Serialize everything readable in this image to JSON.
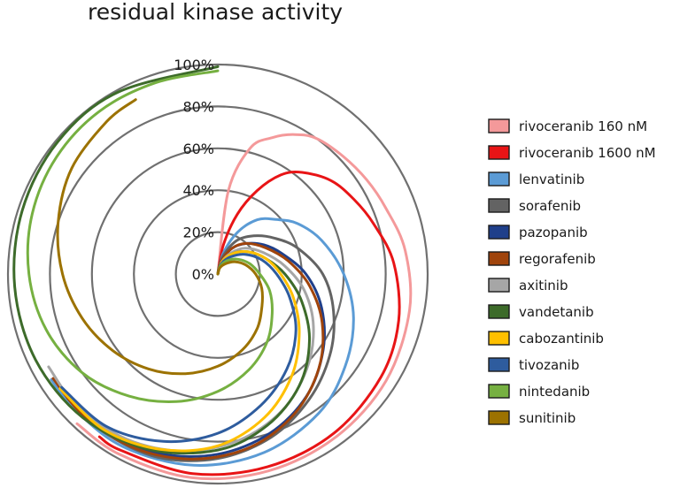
{
  "chart_data": {
    "type": "polar-line",
    "title": "residual kinase activity",
    "radial_ticks": [
      "0%",
      "20%",
      "40%",
      "60%",
      "80%",
      "100%"
    ],
    "radial_values": [
      0,
      20,
      40,
      60,
      80,
      100
    ],
    "rlim": [
      0,
      100
    ],
    "grid": true,
    "legend_position": "right",
    "theta_note": "angle = cumulative share of kinases (0–1), clockwise from 12 o'clock",
    "series": [
      {
        "name": "rivoceranib 160 nM",
        "color": "#f4999a",
        "points": [
          [
            0,
            0
          ],
          [
            0.02,
            40
          ],
          [
            0.04,
            62
          ],
          [
            0.06,
            70
          ],
          [
            0.08,
            76
          ],
          [
            0.1,
            80
          ],
          [
            0.13,
            82
          ],
          [
            0.16,
            84
          ],
          [
            0.19,
            86
          ],
          [
            0.23,
            90
          ],
          [
            0.28,
            93
          ],
          [
            0.34,
            95
          ],
          [
            0.4,
            96
          ],
          [
            0.46,
            97
          ],
          [
            0.52,
            98
          ],
          [
            0.58,
            98
          ],
          [
            0.62,
            98
          ]
        ]
      },
      {
        "name": "rivoceranib 1600 nM",
        "color": "#e81416",
        "points": [
          [
            0,
            0
          ],
          [
            0.03,
            14
          ],
          [
            0.05,
            30
          ],
          [
            0.07,
            44
          ],
          [
            0.09,
            56
          ],
          [
            0.11,
            63
          ],
          [
            0.14,
            70
          ],
          [
            0.17,
            74
          ],
          [
            0.2,
            78
          ],
          [
            0.24,
            84
          ],
          [
            0.29,
            89
          ],
          [
            0.34,
            92
          ],
          [
            0.4,
            94
          ],
          [
            0.46,
            95
          ],
          [
            0.52,
            96
          ],
          [
            0.58,
            96
          ],
          [
            0.6,
            96
          ]
        ]
      },
      {
        "name": "lenvatinib",
        "color": "#5b9bd5",
        "points": [
          [
            0,
            0
          ],
          [
            0.04,
            10
          ],
          [
            0.07,
            22
          ],
          [
            0.1,
            32
          ],
          [
            0.13,
            38
          ],
          [
            0.16,
            45
          ],
          [
            0.2,
            52
          ],
          [
            0.25,
            60
          ],
          [
            0.3,
            68
          ],
          [
            0.35,
            75
          ],
          [
            0.4,
            82
          ],
          [
            0.46,
            88
          ],
          [
            0.52,
            92
          ],
          [
            0.58,
            94
          ],
          [
            0.63,
            94
          ],
          [
            0.66,
            94
          ]
        ]
      },
      {
        "name": "sorafenib",
        "color": "#636363",
        "points": [
          [
            0,
            0
          ],
          [
            0.04,
            8
          ],
          [
            0.08,
            18
          ],
          [
            0.12,
            25
          ],
          [
            0.16,
            32
          ],
          [
            0.2,
            40
          ],
          [
            0.25,
            50
          ],
          [
            0.3,
            58
          ],
          [
            0.35,
            66
          ],
          [
            0.4,
            74
          ],
          [
            0.45,
            82
          ],
          [
            0.5,
            88
          ],
          [
            0.55,
            92
          ],
          [
            0.6,
            93
          ],
          [
            0.64,
            93
          ]
        ]
      },
      {
        "name": "pazopanib",
        "color": "#1f3f8a",
        "points": [
          [
            0,
            0
          ],
          [
            0.04,
            6
          ],
          [
            0.08,
            14
          ],
          [
            0.12,
            20
          ],
          [
            0.16,
            26
          ],
          [
            0.2,
            32
          ],
          [
            0.25,
            42
          ],
          [
            0.3,
            52
          ],
          [
            0.35,
            62
          ],
          [
            0.4,
            72
          ],
          [
            0.45,
            80
          ],
          [
            0.5,
            86
          ],
          [
            0.55,
            90
          ],
          [
            0.6,
            92
          ],
          [
            0.65,
            92
          ]
        ]
      },
      {
        "name": "regorafenib",
        "color": "#a0440c",
        "points": [
          [
            0,
            0
          ],
          [
            0.04,
            6
          ],
          [
            0.08,
            14
          ],
          [
            0.12,
            20
          ],
          [
            0.17,
            26
          ],
          [
            0.22,
            34
          ],
          [
            0.27,
            44
          ],
          [
            0.32,
            55
          ],
          [
            0.37,
            66
          ],
          [
            0.42,
            76
          ],
          [
            0.47,
            84
          ],
          [
            0.52,
            89
          ],
          [
            0.57,
            92
          ],
          [
            0.62,
            93
          ],
          [
            0.66,
            93
          ]
        ]
      },
      {
        "name": "axitinib",
        "color": "#a6a6a6",
        "points": [
          [
            0,
            0
          ],
          [
            0.05,
            6
          ],
          [
            0.09,
            12
          ],
          [
            0.13,
            18
          ],
          [
            0.18,
            24
          ],
          [
            0.23,
            32
          ],
          [
            0.28,
            42
          ],
          [
            0.33,
            52
          ],
          [
            0.38,
            62
          ],
          [
            0.43,
            72
          ],
          [
            0.48,
            80
          ],
          [
            0.53,
            86
          ],
          [
            0.58,
            90
          ],
          [
            0.63,
            92
          ],
          [
            0.67,
            92
          ]
        ]
      },
      {
        "name": "vandetanib",
        "color": "#3d6b2a",
        "points": [
          [
            0,
            0
          ],
          [
            0.05,
            5
          ],
          [
            0.1,
            12
          ],
          [
            0.15,
            18
          ],
          [
            0.2,
            24
          ],
          [
            0.25,
            32
          ],
          [
            0.3,
            42
          ],
          [
            0.35,
            54
          ],
          [
            0.4,
            66
          ],
          [
            0.45,
            76
          ],
          [
            0.5,
            84
          ],
          [
            0.56,
            90
          ],
          [
            0.62,
            94
          ],
          [
            0.68,
            96
          ],
          [
            0.74,
            97
          ],
          [
            0.8,
            98
          ],
          [
            0.86,
            99
          ],
          [
            0.92,
            99
          ],
          [
            1.0,
            99
          ]
        ]
      },
      {
        "name": "cabozantinib",
        "color": "#ffc000",
        "points": [
          [
            0,
            0
          ],
          [
            0.05,
            6
          ],
          [
            0.1,
            12
          ],
          [
            0.15,
            18
          ],
          [
            0.2,
            24
          ],
          [
            0.25,
            30
          ],
          [
            0.3,
            38
          ],
          [
            0.35,
            48
          ],
          [
            0.4,
            60
          ],
          [
            0.45,
            72
          ],
          [
            0.5,
            82
          ],
          [
            0.55,
            88
          ],
          [
            0.6,
            92
          ],
          [
            0.65,
            93
          ]
        ]
      },
      {
        "name": "tivozanib",
        "color": "#2e5c9e",
        "points": [
          [
            0,
            0
          ],
          [
            0.05,
            5
          ],
          [
            0.1,
            10
          ],
          [
            0.15,
            16
          ],
          [
            0.2,
            22
          ],
          [
            0.25,
            28
          ],
          [
            0.3,
            36
          ],
          [
            0.35,
            46
          ],
          [
            0.4,
            56
          ],
          [
            0.45,
            66
          ],
          [
            0.5,
            76
          ],
          [
            0.55,
            84
          ],
          [
            0.6,
            90
          ],
          [
            0.65,
            92
          ]
        ]
      },
      {
        "name": "nintedanib",
        "color": "#76b041",
        "points": [
          [
            0,
            0
          ],
          [
            0.05,
            4
          ],
          [
            0.1,
            8
          ],
          [
            0.15,
            12
          ],
          [
            0.2,
            16
          ],
          [
            0.25,
            20
          ],
          [
            0.3,
            26
          ],
          [
            0.35,
            32
          ],
          [
            0.4,
            40
          ],
          [
            0.45,
            48
          ],
          [
            0.5,
            56
          ],
          [
            0.55,
            64
          ],
          [
            0.6,
            72
          ],
          [
            0.65,
            80
          ],
          [
            0.7,
            86
          ],
          [
            0.75,
            90
          ],
          [
            0.8,
            93
          ],
          [
            0.85,
            95
          ],
          [
            0.9,
            96
          ],
          [
            0.95,
            96
          ],
          [
            1.0,
            97
          ]
        ]
      },
      {
        "name": "sunitinib",
        "color": "#9c7200",
        "points": [
          [
            0,
            0
          ],
          [
            0.05,
            3
          ],
          [
            0.1,
            6
          ],
          [
            0.15,
            10
          ],
          [
            0.2,
            14
          ],
          [
            0.25,
            18
          ],
          [
            0.3,
            22
          ],
          [
            0.35,
            26
          ],
          [
            0.4,
            32
          ],
          [
            0.45,
            38
          ],
          [
            0.5,
            44
          ],
          [
            0.55,
            50
          ],
          [
            0.6,
            56
          ],
          [
            0.65,
            62
          ],
          [
            0.7,
            68
          ],
          [
            0.75,
            74
          ],
          [
            0.8,
            80
          ],
          [
            0.85,
            86
          ],
          [
            0.9,
            90
          ],
          [
            0.93,
            92
          ]
        ]
      }
    ]
  }
}
